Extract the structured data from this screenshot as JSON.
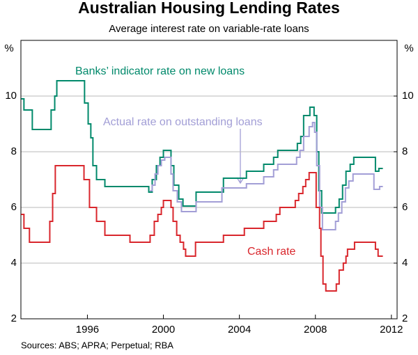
{
  "chart_data": {
    "type": "line",
    "step": true,
    "title": "Australian Housing Lending Rates",
    "subtitle": "Average interest rate on variable-rate loans",
    "y_label": "%",
    "y2_label": "%",
    "source": "Sources: ABS; APRA; Perpetual; RBA",
    "xlim": [
      1992.5,
      2012.3
    ],
    "xticks": [
      1996,
      2000,
      2004,
      2008,
      2012
    ],
    "ylim": [
      2,
      12
    ],
    "yticks": [
      2,
      4,
      6,
      8,
      10
    ],
    "y2lim": [
      2,
      12
    ],
    "y2ticks": [
      2,
      4,
      6,
      8,
      10
    ],
    "grid": true,
    "series": [
      {
        "name": "Banks’ indicator rate on new loans",
        "color": "#00896b",
        "x": [
          1992.51,
          1992.66,
          1993.1,
          1994.09,
          1994.28,
          1994.39,
          1995.85,
          1996.04,
          1996.18,
          1996.29,
          1996.48,
          1996.92,
          1999.23,
          1999.41,
          1999.63,
          1999.82,
          2000.0,
          2000.4,
          2000.55,
          2000.81,
          2001.03,
          2001.72,
          2003.16,
          2004.37,
          2005.28,
          2005.8,
          2006.02,
          2007.05,
          2007.23,
          2007.38,
          2007.71,
          2007.93,
          2008.07,
          2008.18,
          2008.33,
          2009.06,
          2009.25,
          2009.43,
          2009.61,
          2009.83,
          2010.02,
          2011.16,
          2011.34,
          2011.55
        ],
        "values": [
          9.9,
          9.5,
          8.8,
          9.5,
          10.0,
          10.55,
          9.75,
          9.0,
          8.5,
          7.5,
          7.0,
          6.75,
          6.55,
          7.0,
          7.5,
          7.8,
          8.05,
          7.5,
          6.8,
          6.3,
          6.05,
          6.55,
          7.05,
          7.3,
          7.55,
          7.8,
          8.05,
          8.3,
          8.55,
          9.3,
          9.6,
          9.3,
          8.0,
          6.6,
          5.8,
          6.0,
          6.3,
          6.8,
          7.3,
          7.55,
          7.8,
          7.3,
          7.4,
          7.4
        ]
      },
      {
        "name": "Actual rate on outstanding loans",
        "color": "#a29ed6",
        "x": [
          1999.3,
          1999.41,
          1999.56,
          1999.71,
          1999.89,
          2000.07,
          2000.4,
          2000.51,
          2000.73,
          2000.95,
          2001.72,
          2003.08,
          2004.37,
          2005.28,
          2005.8,
          2006.02,
          2007.01,
          2007.19,
          2007.38,
          2007.67,
          2007.85,
          2007.96,
          2008.07,
          2008.22,
          2008.37,
          2009.06,
          2009.21,
          2009.39,
          2009.58,
          2009.76,
          2009.98,
          2011.08,
          2011.38,
          2011.55
        ],
        "values": [
          6.6,
          6.8,
          7.2,
          7.5,
          7.7,
          7.8,
          7.2,
          6.6,
          6.2,
          5.85,
          6.2,
          6.7,
          6.85,
          7.1,
          7.35,
          7.55,
          7.8,
          8.05,
          8.55,
          8.9,
          9.05,
          8.7,
          7.5,
          6.0,
          5.2,
          5.5,
          5.8,
          6.2,
          6.7,
          6.95,
          7.2,
          6.65,
          6.75,
          6.75
        ]
      },
      {
        "name": "Cash rate",
        "color": "#d9262c",
        "x": [
          1992.51,
          1992.66,
          1992.95,
          1994.02,
          1994.17,
          1994.31,
          1995.82,
          1996.11,
          1996.48,
          1996.92,
          1998.24,
          1999.3,
          1999.52,
          1999.71,
          1999.89,
          2000.0,
          2000.4,
          2000.51,
          2000.7,
          2000.88,
          2001.06,
          2001.17,
          2001.69,
          2003.16,
          2004.26,
          2005.28,
          2005.94,
          2006.13,
          2006.94,
          2007.12,
          2007.34,
          2007.49,
          2007.67,
          2008.04,
          2008.22,
          2008.29,
          2008.4,
          2008.55,
          2009.1,
          2009.25,
          2009.47,
          2009.61,
          2009.69,
          2010.06,
          2011.16,
          2011.3,
          2011.55
        ],
        "values": [
          5.75,
          5.25,
          4.75,
          5.5,
          6.5,
          7.5,
          7.0,
          6.0,
          5.5,
          5.0,
          4.75,
          5.0,
          5.5,
          5.75,
          6.0,
          6.25,
          6.0,
          5.5,
          5.0,
          4.75,
          4.5,
          4.25,
          4.75,
          5.0,
          5.25,
          5.5,
          5.75,
          6.0,
          6.25,
          6.5,
          6.75,
          7.0,
          7.25,
          6.0,
          5.25,
          4.25,
          3.25,
          3.0,
          3.25,
          3.75,
          4.0,
          4.25,
          4.5,
          4.75,
          4.5,
          4.25,
          4.25
        ]
      }
    ]
  }
}
